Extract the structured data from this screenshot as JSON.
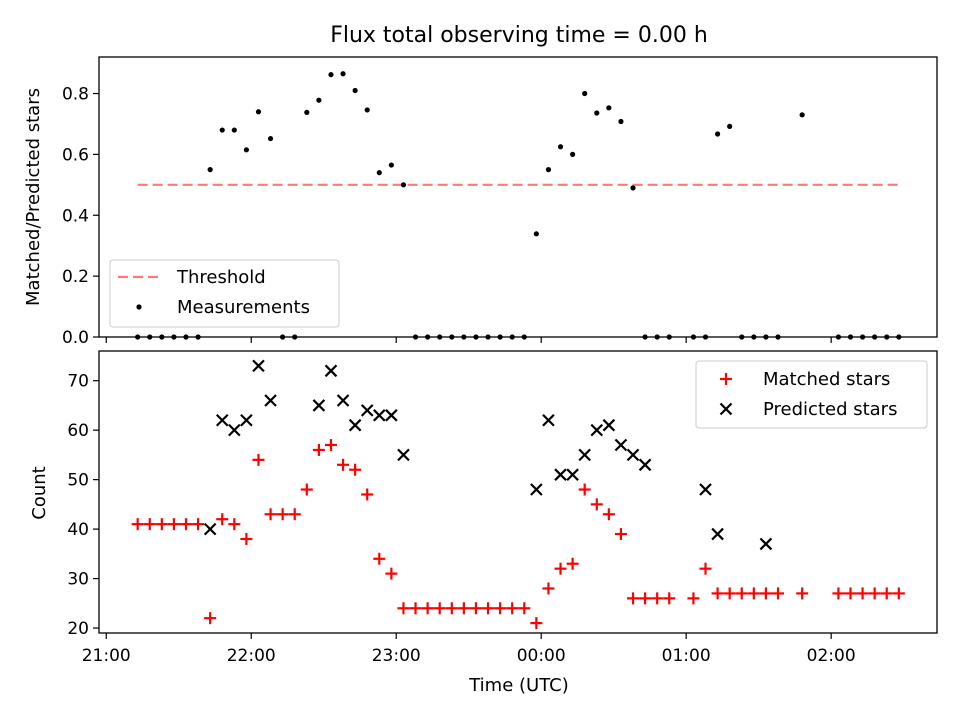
{
  "chart_data": [
    {
      "type": "scatter",
      "title": "Flux total observing time = 0.00 h",
      "xlabel": "",
      "ylabel": "Matched/Predicted stars",
      "ylim": [
        0,
        0.92
      ],
      "yticks": [
        "0.0",
        "0.2",
        "0.4",
        "0.6",
        "0.8"
      ],
      "ytick_values": [
        0,
        0.2,
        0.4,
        0.6,
        0.8
      ],
      "xlim_hours": [
        20.95,
        26.73
      ],
      "legend_position": "lower-left",
      "threshold": {
        "name": "Threshold",
        "value": 0.5,
        "x_start": "21:13",
        "x_end": "02:28",
        "color": "#ff7777"
      },
      "series": [
        {
          "name": "Measurements",
          "color": "#000000",
          "x": [
            "21:13",
            "21:18",
            "21:23",
            "21:28",
            "21:33",
            "21:38",
            "21:43",
            "21:48",
            "21:53",
            "21:58",
            "22:03",
            "22:08",
            "22:13",
            "22:18",
            "22:23",
            "22:28",
            "22:33",
            "22:38",
            "22:43",
            "22:48",
            "22:53",
            "22:58",
            "23:03",
            "23:08",
            "23:13",
            "23:18",
            "23:23",
            "23:28",
            "23:33",
            "23:38",
            "23:43",
            "23:48",
            "23:53",
            "23:58",
            "00:03",
            "00:08",
            "00:13",
            "00:18",
            "00:23",
            "00:28",
            "00:33",
            "00:38",
            "00:43",
            "00:48",
            "00:53",
            "01:03",
            "01:08",
            "01:13",
            "01:18",
            "01:23",
            "01:28",
            "01:33",
            "01:38",
            "01:48",
            "02:03",
            "02:08",
            "02:13",
            "02:18",
            "02:23",
            "02:28"
          ],
          "y": [
            0,
            0,
            0,
            0,
            0,
            0,
            0.55,
            0.68,
            0.68,
            0.615,
            0.74,
            0.652,
            0,
            0,
            0.738,
            0.778,
            0.862,
            0.865,
            0.81,
            0.746,
            0.54,
            0.565,
            0.5,
            0,
            0,
            0,
            0,
            0,
            0,
            0,
            0,
            0,
            0,
            0.339,
            0.55,
            0.625,
            0.6,
            0.8,
            0.736,
            0.753,
            0.708,
            0.49,
            0,
            0,
            0,
            0,
            0,
            0.667,
            0.692,
            0,
            0,
            0,
            0,
            0.73,
            0,
            0,
            0,
            0,
            0,
            0
          ]
        }
      ]
    },
    {
      "type": "scatter",
      "title": "",
      "xlabel": "Time (UTC)",
      "ylabel": "Count",
      "ylim": [
        19,
        76
      ],
      "yticks": [
        "20",
        "30",
        "40",
        "50",
        "60",
        "70"
      ],
      "ytick_values": [
        20,
        30,
        40,
        50,
        60,
        70
      ],
      "xlim_hours": [
        20.95,
        26.73
      ],
      "xticks": [
        "21:00",
        "22:00",
        "23:00",
        "00:00",
        "01:00",
        "02:00"
      ],
      "xtick_hours": [
        21,
        22,
        23,
        24,
        25,
        26
      ],
      "legend_position": "upper-right",
      "series": [
        {
          "name": "Matched stars",
          "marker": "plus",
          "color": "#ff0000",
          "x": [
            "21:13",
            "21:18",
            "21:23",
            "21:28",
            "21:33",
            "21:38",
            "21:43",
            "21:48",
            "21:53",
            "21:58",
            "22:03",
            "22:08",
            "22:13",
            "22:18",
            "22:23",
            "22:28",
            "22:33",
            "22:38",
            "22:43",
            "22:48",
            "22:53",
            "22:58",
            "23:03",
            "23:08",
            "23:13",
            "23:18",
            "23:23",
            "23:28",
            "23:33",
            "23:38",
            "23:43",
            "23:48",
            "23:53",
            "23:58",
            "00:03",
            "00:08",
            "00:13",
            "00:18",
            "00:23",
            "00:28",
            "00:33",
            "00:38",
            "00:43",
            "00:48",
            "00:53",
            "01:03",
            "01:08",
            "01:13",
            "01:18",
            "01:23",
            "01:28",
            "01:33",
            "01:38",
            "01:48",
            "02:03",
            "02:08",
            "02:13",
            "02:18",
            "02:23",
            "02:28"
          ],
          "y": [
            41,
            41,
            41,
            41,
            41,
            41,
            22,
            42,
            41,
            38,
            54,
            43,
            43,
            43,
            48,
            56,
            57,
            53,
            52,
            47,
            34,
            31,
            24,
            24,
            24,
            24,
            24,
            24,
            24,
            24,
            24,
            24,
            24,
            21,
            28,
            32,
            33,
            48,
            45,
            43,
            39,
            26,
            26,
            26,
            26,
            26,
            32,
            27,
            27,
            27,
            27,
            27,
            27,
            27,
            27,
            27,
            27,
            27,
            27,
            27
          ]
        },
        {
          "name": "Predicted stars",
          "marker": "x",
          "color": "#000000",
          "x": [
            "21:43",
            "21:48",
            "21:53",
            "21:58",
            "22:03",
            "22:08",
            "22:28",
            "22:33",
            "22:38",
            "22:43",
            "22:48",
            "22:53",
            "22:58",
            "23:03",
            "23:58",
            "00:03",
            "00:08",
            "00:13",
            "00:18",
            "00:23",
            "00:28",
            "00:33",
            "00:38",
            "00:43",
            "01:08",
            "01:13",
            "01:33"
          ],
          "y": [
            40,
            62,
            60,
            62,
            73,
            66,
            65,
            72,
            66,
            61,
            64,
            63,
            63,
            55,
            48,
            62,
            51,
            51,
            55,
            60,
            61,
            57,
            55,
            53,
            48,
            39,
            37
          ]
        }
      ]
    }
  ]
}
